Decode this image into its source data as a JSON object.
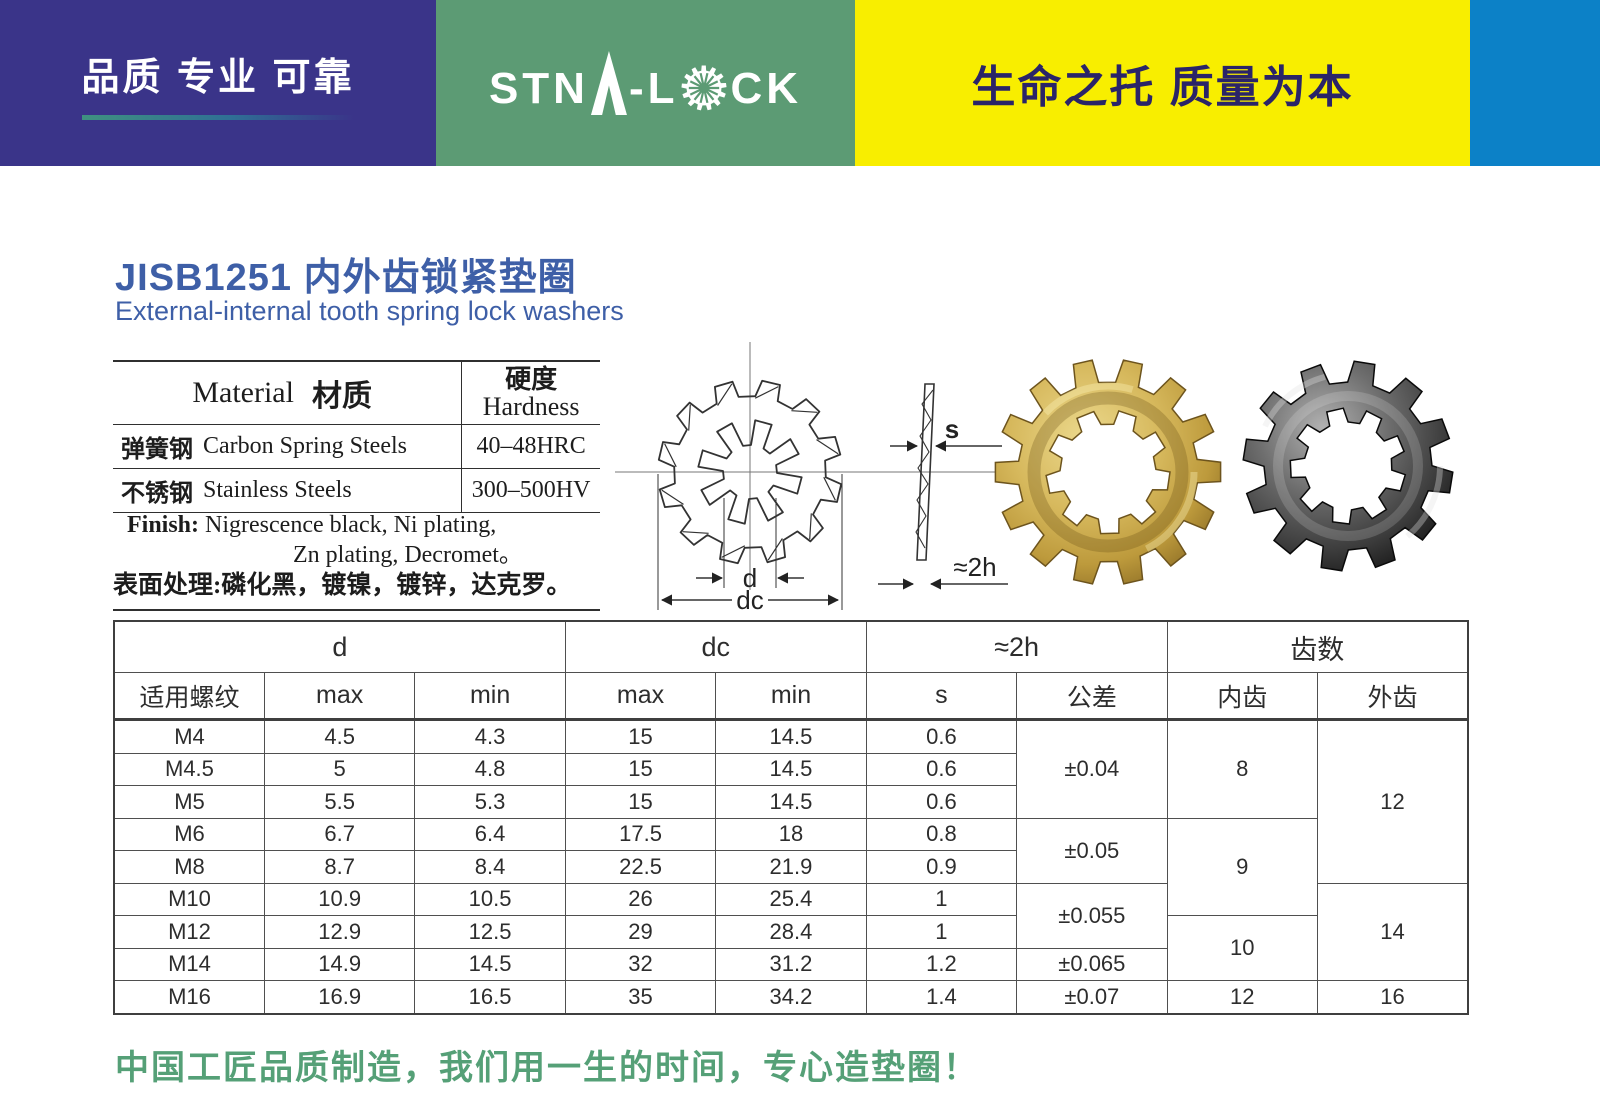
{
  "header": {
    "tagline": "品质 专业 可靠",
    "brand_pre": "STN",
    "brand_mid": "-L",
    "brand_post": "CK",
    "slogan": "生命之托 质量为本",
    "colors": {
      "purple": "#3a3489",
      "green": "#5c9b74",
      "yellow": "#f8ee00",
      "blue": "#0c81c7",
      "slogan_text": "#2a2468",
      "title_blue": "#3e5fa7",
      "footer_green": "#55a077"
    }
  },
  "icons": {
    "logo_gear": "gear-icon"
  },
  "product": {
    "title": "JISB1251 内外齿锁紧垫圈",
    "subtitle": "External-internal tooth spring lock washers"
  },
  "material_table": {
    "header": {
      "en": "Material",
      "cn": "材质",
      "hardness_cn": "硬度",
      "hardness_en": "Hardness"
    },
    "rows": [
      {
        "cn": "弹簧钢",
        "en": "Carbon Spring  Steels",
        "hardness": "40–48HRC"
      },
      {
        "cn": "不锈钢",
        "en": "Stainless Steels",
        "hardness": "300–500HV"
      }
    ]
  },
  "finish": {
    "label": "Finish:",
    "line1": " Nigrescence black,  Ni plating,",
    "line2": "Zn plating,  Decromet。",
    "line3": "表面处理:磷化黑，镀镍，镀锌，达克罗。"
  },
  "drawing": {
    "d_label": "d",
    "dc_label": "dc",
    "s_label": "s",
    "h_label": "≈2h"
  },
  "photos": {
    "left": "gold-zinc-plated external-internal tooth washer",
    "right": "black-finish external-internal tooth washer"
  },
  "spec_table": {
    "group_headers": [
      {
        "label": "d",
        "span": 3
      },
      {
        "label": "dc",
        "span": 2
      },
      {
        "label": "≈2h",
        "span": 2
      },
      {
        "label": "齿数",
        "span": 2
      }
    ],
    "sub_headers": [
      "适用螺纹",
      "max",
      "min",
      "max",
      "min",
      "s",
      "公差",
      "内齿",
      "外齿"
    ],
    "rows": [
      [
        "M4",
        "4.5",
        "4.3",
        "15",
        "14.5",
        "0.6",
        {
          "t": "±0.04",
          "rs": 3
        },
        {
          "t": "8",
          "rs": 3
        },
        {
          "t": "12",
          "rs": 5
        }
      ],
      [
        "M4.5",
        "5",
        "4.8",
        "15",
        "14.5",
        "0.6"
      ],
      [
        "M5",
        "5.5",
        "5.3",
        "15",
        "14.5",
        "0.6"
      ],
      [
        "M6",
        "6.7",
        "6.4",
        "17.5",
        "18",
        "0.8",
        {
          "t": "±0.05",
          "rs": 2
        },
        {
          "t": "9",
          "rs": 3
        }
      ],
      [
        "M8",
        "8.7",
        "8.4",
        "22.5",
        "21.9",
        "0.9"
      ],
      [
        "M10",
        "10.9",
        "10.5",
        "26",
        "25.4",
        "1",
        {
          "t": "±0.055",
          "rs": 2
        },
        {
          "t": "14",
          "rs": 3
        }
      ],
      [
        "M12",
        "12.9",
        "12.5",
        "29",
        "28.4",
        "1",
        {
          "t": "10",
          "rs": 2
        }
      ],
      [
        "M14",
        "14.9",
        "14.5",
        "32",
        "31.2",
        "1.2",
        {
          "t": "±0.065",
          "rs": 1
        }
      ],
      [
        "M16",
        "16.9",
        "16.5",
        "35",
        "34.2",
        "1.4",
        {
          "t": "±0.07",
          "rs": 1
        },
        "12",
        "16"
      ]
    ]
  },
  "footer": {
    "slogan": "中国工匠品质制造，我们用一生的时间，专心造垫圈！"
  }
}
